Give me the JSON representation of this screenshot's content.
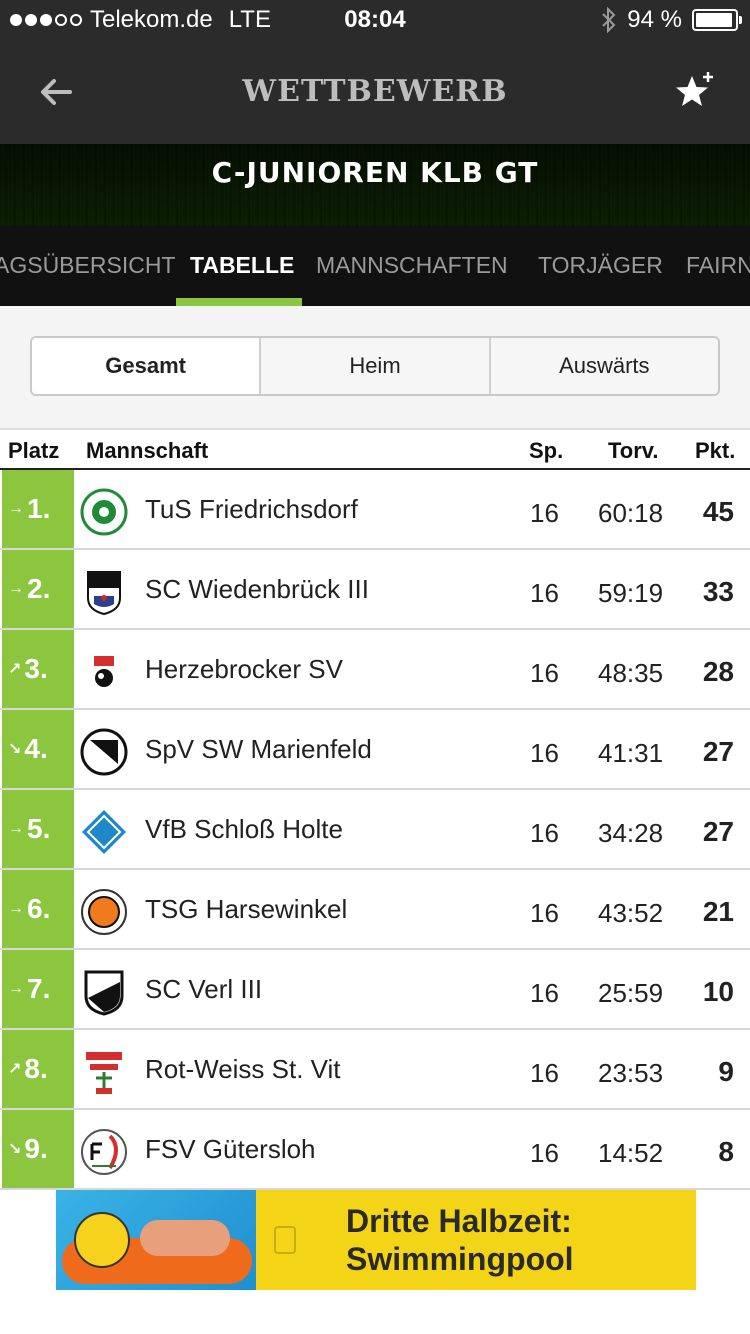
{
  "status_bar": {
    "carrier": "Telekom.de",
    "network": "LTE",
    "time": "08:04",
    "battery": "94 %",
    "battery_level": 0.94,
    "signal_bars": 3
  },
  "nav": {
    "title": "WETTBEWERB",
    "back_icon": "arrow-left-icon",
    "favorite_icon": "star-plus-icon"
  },
  "banner": {
    "title": "C-JUNIOREN KLB GT"
  },
  "tabs": [
    {
      "label": "AGSÜBERSICHT",
      "active": false
    },
    {
      "label": "TABELLE",
      "active": true
    },
    {
      "label": "MANNSCHAFTEN",
      "active": false
    },
    {
      "label": "TORJÄGER",
      "active": false
    },
    {
      "label": "FAIRN",
      "active": false
    }
  ],
  "segments": [
    {
      "label": "Gesamt",
      "active": true
    },
    {
      "label": "Heim",
      "active": false
    },
    {
      "label": "Auswärts",
      "active": false
    }
  ],
  "table": {
    "headers": {
      "platz": "Platz",
      "mannschaft": "Mannschaft",
      "sp": "Sp.",
      "torv": "Torv.",
      "pkt": "Pkt."
    },
    "accent_color": "#8cc63e",
    "rows": [
      {
        "rank": "1.",
        "trend": "→",
        "team": "TuS Friedrichsdorf",
        "sp": "16",
        "torv": "60:18",
        "pkt": "45"
      },
      {
        "rank": "2.",
        "trend": "→",
        "team": "SC Wiedenbrück III",
        "sp": "16",
        "torv": "59:19",
        "pkt": "33"
      },
      {
        "rank": "3.",
        "trend": "↗",
        "team": "Herzebrocker SV",
        "sp": "16",
        "torv": "48:35",
        "pkt": "28"
      },
      {
        "rank": "4.",
        "trend": "↘",
        "team": "SpV SW Marienfeld",
        "sp": "16",
        "torv": "41:31",
        "pkt": "27"
      },
      {
        "rank": "5.",
        "trend": "→",
        "team": "VfB Schloß Holte",
        "sp": "16",
        "torv": "34:28",
        "pkt": "27"
      },
      {
        "rank": "6.",
        "trend": "→",
        "team": "TSG Harsewinkel",
        "sp": "16",
        "torv": "43:52",
        "pkt": "21"
      },
      {
        "rank": "7.",
        "trend": "→",
        "team": "SC Verl III",
        "sp": "16",
        "torv": "25:59",
        "pkt": "10"
      },
      {
        "rank": "8.",
        "trend": "↗",
        "team": "Rot-Weiss St. Vit",
        "sp": "16",
        "torv": "23:53",
        "pkt": "9"
      },
      {
        "rank": "9.",
        "trend": "↘",
        "team": "FSV Gütersloh",
        "sp": "16",
        "torv": "14:52",
        "pkt": "8"
      }
    ]
  },
  "ad": {
    "line1": "Dritte Halbzeit:",
    "line2": "Swimmingpool"
  }
}
